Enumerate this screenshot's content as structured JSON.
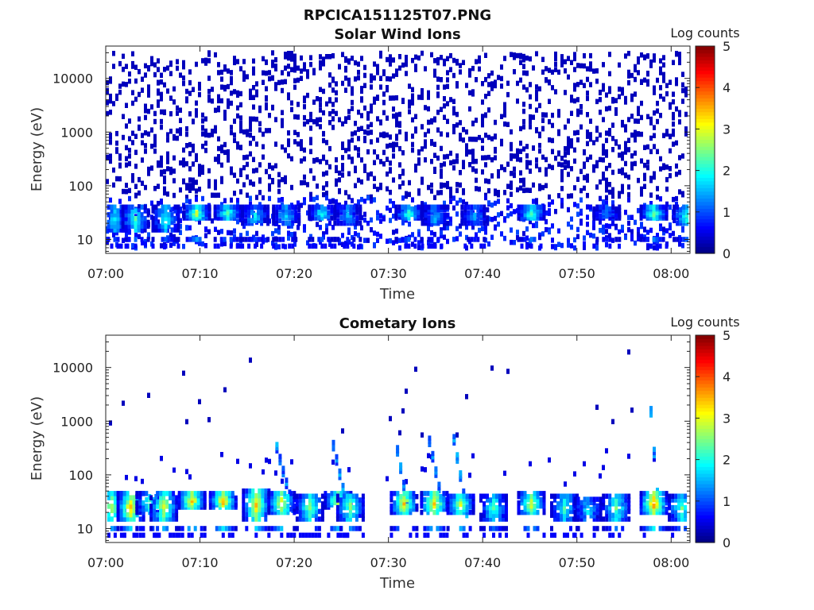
{
  "figure": {
    "title": "RPCICA151125T07.PNG"
  },
  "colorscale": [
    "#00007f",
    "#0000ff",
    "#0080ff",
    "#00ffff",
    "#80ff80",
    "#ffff00",
    "#ff8000",
    "#ff0000",
    "#7f0000"
  ],
  "chart_data": [
    {
      "type": "heatmap",
      "title": "Solar Wind Ions",
      "xlabel": "Time",
      "ylabel": "Energy (eV)",
      "x_ticks": [
        "07:00",
        "07:10",
        "07:20",
        "07:30",
        "07:40",
        "07:50",
        "08:00"
      ],
      "x_range_minutes": [
        0,
        62
      ],
      "y_scale": "log",
      "y_range": [
        5.5,
        40000
      ],
      "y_ticks": [
        10,
        100,
        1000,
        10000
      ],
      "y_tick_labels": [
        "10",
        "100",
        "1000",
        "10000"
      ],
      "colorbar": {
        "label": "Log counts",
        "range": [
          0,
          5
        ],
        "ticks": [
          "0",
          "1",
          "2",
          "3",
          "4",
          "5"
        ]
      },
      "pattern": "sparse",
      "clusters": [
        {
          "t": 0.8,
          "e_lo": 15,
          "e_hi": 40,
          "level": 1.8
        },
        {
          "t": 3.0,
          "e_lo": 15,
          "e_hi": 40,
          "level": 2.2
        },
        {
          "t": 6.2,
          "e_lo": 15,
          "e_hi": 40,
          "level": 2.0
        },
        {
          "t": 9.5,
          "e_lo": 25,
          "e_hi": 40,
          "level": 2.8
        },
        {
          "t": 12.8,
          "e_lo": 25,
          "e_hi": 40,
          "level": 2.4
        },
        {
          "t": 15.7,
          "e_lo": 20,
          "e_hi": 40,
          "level": 1.8
        },
        {
          "t": 19.0,
          "e_lo": 20,
          "e_hi": 40,
          "level": 1.7
        },
        {
          "t": 22.8,
          "e_lo": 25,
          "e_hi": 40,
          "level": 2.0
        },
        {
          "t": 25.5,
          "e_lo": 20,
          "e_hi": 40,
          "level": 1.5
        },
        {
          "t": 32.0,
          "e_lo": 25,
          "e_hi": 40,
          "level": 2.2
        },
        {
          "t": 34.8,
          "e_lo": 20,
          "e_hi": 40,
          "level": 1.6
        },
        {
          "t": 39.0,
          "e_lo": 20,
          "e_hi": 40,
          "level": 1.4
        },
        {
          "t": 45.0,
          "e_lo": 25,
          "e_hi": 40,
          "level": 2.4
        },
        {
          "t": 53.0,
          "e_lo": 25,
          "e_hi": 40,
          "level": 1.4
        },
        {
          "t": 58.0,
          "e_lo": 25,
          "e_hi": 40,
          "level": 2.5
        },
        {
          "t": 61.5,
          "e_lo": 20,
          "e_hi": 40,
          "level": 2.2
        }
      ]
    },
    {
      "type": "heatmap",
      "title": "Cometary Ions",
      "xlabel": "Time",
      "ylabel": "Energy (eV)",
      "x_ticks": [
        "07:00",
        "07:10",
        "07:20",
        "07:30",
        "07:40",
        "07:50",
        "08:00"
      ],
      "x_range_minutes": [
        0,
        62
      ],
      "y_scale": "log",
      "y_range": [
        5.5,
        40000
      ],
      "y_ticks": [
        10,
        100,
        1000,
        10000
      ],
      "y_tick_labels": [
        "10",
        "100",
        "1000",
        "10000"
      ],
      "colorbar": {
        "label": "Log counts",
        "range": [
          0,
          5
        ],
        "ticks": [
          "0",
          "1",
          "2",
          "3",
          "4",
          "5"
        ]
      },
      "pattern": "clustered",
      "clusters": [
        {
          "t": 0.5,
          "e_lo": 15,
          "e_hi": 45,
          "level": 2.8
        },
        {
          "t": 2.5,
          "e_lo": 15,
          "e_hi": 45,
          "level": 3.4
        },
        {
          "t": 4.5,
          "e_lo": 20,
          "e_hi": 45,
          "level": 2.2
        },
        {
          "t": 6.0,
          "e_lo": 15,
          "e_hi": 45,
          "level": 3.0
        },
        {
          "t": 9.0,
          "e_lo": 25,
          "e_hi": 45,
          "level": 3.5
        },
        {
          "t": 12.3,
          "e_lo": 25,
          "e_hi": 45,
          "level": 3.6
        },
        {
          "t": 15.8,
          "e_lo": 15,
          "e_hi": 50,
          "level": 3.4
        },
        {
          "t": 18.5,
          "e_lo": 20,
          "e_hi": 45,
          "level": 3.2
        },
        {
          "t": 21.5,
          "e_lo": 15,
          "e_hi": 40,
          "level": 2.6
        },
        {
          "t": 24.5,
          "e_lo": 25,
          "e_hi": 45,
          "level": 3.0
        },
        {
          "t": 25.8,
          "e_lo": 15,
          "e_hi": 40,
          "level": 2.6
        },
        {
          "t": 31.5,
          "e_lo": 20,
          "e_hi": 45,
          "level": 3.3
        },
        {
          "t": 34.7,
          "e_lo": 20,
          "e_hi": 45,
          "level": 3.4
        },
        {
          "t": 37.5,
          "e_lo": 20,
          "e_hi": 40,
          "level": 3.0
        },
        {
          "t": 41.0,
          "e_lo": 15,
          "e_hi": 40,
          "level": 2.2
        },
        {
          "t": 45.0,
          "e_lo": 20,
          "e_hi": 45,
          "level": 3.0
        },
        {
          "t": 48.5,
          "e_lo": 15,
          "e_hi": 40,
          "level": 2.2
        },
        {
          "t": 51.0,
          "e_lo": 15,
          "e_hi": 35,
          "level": 1.8
        },
        {
          "t": 54.0,
          "e_lo": 15,
          "e_hi": 40,
          "level": 2.4
        },
        {
          "t": 58.0,
          "e_lo": 20,
          "e_hi": 45,
          "level": 3.8
        },
        {
          "t": 61.0,
          "e_lo": 15,
          "e_hi": 40,
          "level": 2.4
        }
      ],
      "streaks": [
        {
          "t0": 18.0,
          "t1": 19.8,
          "e_top": 320,
          "e_bot": 25
        },
        {
          "t0": 24.0,
          "t1": 25.2,
          "e_top": 350,
          "e_bot": 30
        },
        {
          "t0": 30.8,
          "t1": 31.8,
          "e_top": 280,
          "e_bot": 30
        },
        {
          "t0": 34.2,
          "t1": 35.6,
          "e_top": 420,
          "e_bot": 30
        },
        {
          "t0": 36.8,
          "t1": 38.2,
          "e_top": 450,
          "e_bot": 20
        },
        {
          "t0": 57.7,
          "t1": 58.3,
          "e_top": 1500,
          "e_bot": 45
        }
      ]
    }
  ]
}
